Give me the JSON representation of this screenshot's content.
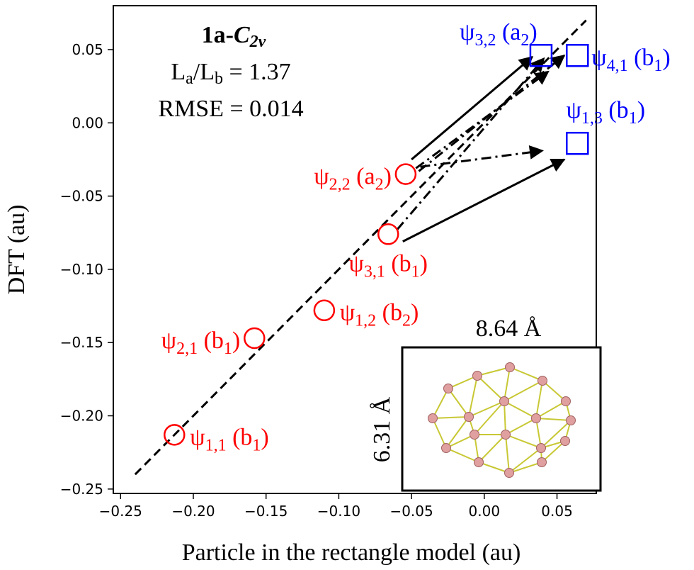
{
  "chart_data": {
    "type": "scatter",
    "title": "1a-C2v",
    "xlabel": "Particle in the rectangle model (au)",
    "ylabel": "DFT (au)",
    "xlim": [
      -0.255,
      0.077
    ],
    "ylim": [
      -0.253,
      0.08
    ],
    "xticks": [
      -0.25,
      -0.2,
      -0.15,
      -0.1,
      -0.05,
      0.0,
      0.05
    ],
    "xtick_labels": [
      "−0.25",
      "−0.20",
      "−0.15",
      "−0.10",
      "−0.05",
      "0.00",
      "0.05"
    ],
    "yticks": [
      -0.25,
      -0.2,
      -0.15,
      -0.1,
      -0.05,
      0.0,
      0.05
    ],
    "ytick_labels": [
      "−0.25",
      "−0.20",
      "−0.15",
      "−0.10",
      "−0.05",
      "0.00",
      "0.05"
    ],
    "info": {
      "title_main": "1a-",
      "title_italic": "C",
      "title_sub": "2v",
      "ratio_La": "L",
      "ratio_a": "a",
      "ratio_slash": "/L",
      "ratio_b": "b",
      "ratio_value": " = 1.37",
      "rmse": "RMSE = 0.014"
    },
    "fit_line": {
      "x": [
        -0.24,
        0.07
      ],
      "y": [
        -0.24,
        0.07
      ],
      "style": "dashed"
    },
    "occupied": {
      "name": "occupied",
      "color": "#ff0000",
      "marker": "circle",
      "points": [
        {
          "x": -0.213,
          "y": -0.213,
          "psi": "ψ",
          "idx": "1,1",
          "open": " (b",
          "sym": "1",
          "close": ")"
        },
        {
          "x": -0.158,
          "y": -0.147,
          "psi": "ψ",
          "idx": "2,1",
          "open": " (b",
          "sym": "1",
          "close": ")"
        },
        {
          "x": -0.11,
          "y": -0.128,
          "psi": "ψ",
          "idx": "1,2",
          "open": " (b",
          "sym": "2",
          "close": ")"
        },
        {
          "x": -0.066,
          "y": -0.076,
          "psi": "ψ",
          "idx": "3,1",
          "open": " (b",
          "sym": "1",
          "close": ")"
        },
        {
          "x": -0.054,
          "y": -0.035,
          "psi": "ψ",
          "idx": "2,2",
          "open": " (a",
          "sym": "2",
          "close": ")"
        }
      ]
    },
    "unoccupied": {
      "name": "unoccupied",
      "color": "#0000ff",
      "marker": "square",
      "points": [
        {
          "x": 0.039,
          "y": 0.046,
          "psi": "ψ",
          "idx": "3,2",
          "open": " (a",
          "sym": "2",
          "close": ")"
        },
        {
          "x": 0.064,
          "y": 0.046,
          "psi": "ψ",
          "idx": "4,1",
          "open": " (b",
          "sym": "1",
          "close": ")"
        },
        {
          "x": 0.064,
          "y": -0.014,
          "psi": "ψ",
          "idx": "1,3",
          "open": " (b",
          "sym": "1",
          "close": ")"
        }
      ]
    },
    "transitions": [
      {
        "from": [
          -0.05,
          -0.025
        ],
        "to": [
          0.033,
          0.045
        ],
        "style": "solid"
      },
      {
        "from": [
          -0.047,
          -0.031
        ],
        "to": [
          0.044,
          0.035
        ],
        "style": "dashdot"
      },
      {
        "from": [
          -0.045,
          -0.033
        ],
        "to": [
          0.055,
          0.046
        ],
        "style": "dashdot"
      },
      {
        "from": [
          -0.044,
          -0.03
        ],
        "to": [
          0.04,
          -0.019
        ],
        "style": "dashdot"
      },
      {
        "from": [
          -0.056,
          -0.081
        ],
        "to": [
          0.055,
          -0.025
        ],
        "style": "solid"
      },
      {
        "from": [
          -0.06,
          -0.073
        ],
        "to": [
          0.041,
          0.044
        ],
        "style": "dashdot"
      }
    ],
    "inset": {
      "width_label": "8.64 Å",
      "height_label": "6.31 Å",
      "description": "cluster structure"
    }
  }
}
